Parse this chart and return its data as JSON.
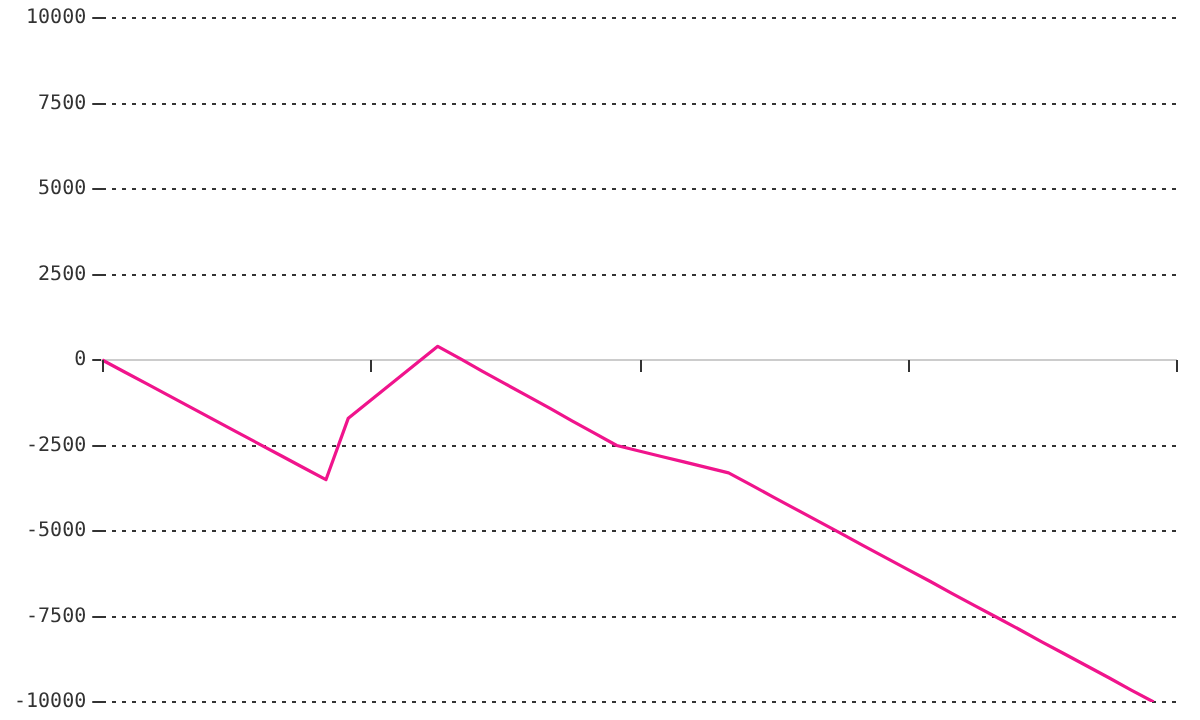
{
  "chart_data": {
    "type": "line",
    "categories": [
      null,
      null,
      null,
      null,
      null,
      null,
      null,
      null,
      null,
      null,
      null,
      null,
      null,
      null,
      null,
      null,
      null,
      null,
      null,
      null,
      null,
      null,
      null,
      null,
      null,
      null,
      null,
      null,
      null,
      null,
      null,
      null,
      null,
      null,
      null,
      null,
      null,
      null,
      null,
      null,
      null,
      null,
      null,
      null,
      null,
      null,
      null,
      null,
      null
    ],
    "series": [
      {
        "color": "#f0148c",
        "values": [
          0,
          -350,
          -700,
          -1050,
          -1400,
          -1750,
          -2100,
          -2450,
          -2800,
          -3150,
          -3500,
          -1700,
          -1175,
          -650,
          -125,
          400,
          40,
          -330,
          -690,
          -1050,
          -1410,
          -1780,
          -2140,
          -2500,
          -2660,
          -2820,
          -2980,
          -3140,
          -3300,
          -3650,
          -4010,
          -4360,
          -4710,
          -5060,
          -5420,
          -5770,
          -6120,
          -6470,
          -6830,
          -7180,
          -7530,
          -7880,
          -8240,
          -8590,
          -8940,
          -9290,
          -9650,
          -10000,
          null
        ]
      }
    ],
    "ylim": [
      -10000,
      10000
    ],
    "yticks": [
      -10000,
      -7500,
      -5000,
      -2500,
      0,
      2500,
      5000,
      7500,
      10000
    ],
    "grid": "y",
    "tick_labels": "y"
  }
}
